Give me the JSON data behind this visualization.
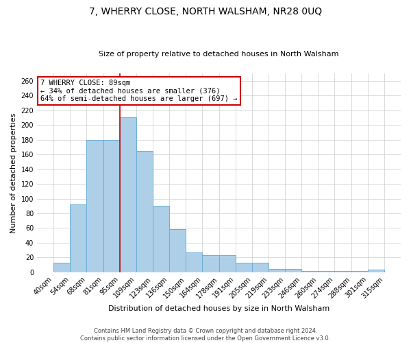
{
  "title": "7, WHERRY CLOSE, NORTH WALSHAM, NR28 0UQ",
  "subtitle": "Size of property relative to detached houses in North Walsham",
  "xlabel": "Distribution of detached houses by size in North Walsham",
  "ylabel": "Number of detached properties",
  "bin_labels": [
    "40sqm",
    "54sqm",
    "68sqm",
    "81sqm",
    "95sqm",
    "109sqm",
    "123sqm",
    "136sqm",
    "150sqm",
    "164sqm",
    "178sqm",
    "191sqm",
    "205sqm",
    "219sqm",
    "233sqm",
    "246sqm",
    "260sqm",
    "274sqm",
    "288sqm",
    "301sqm",
    "315sqm"
  ],
  "bar_heights": [
    13,
    92,
    180,
    180,
    210,
    165,
    90,
    59,
    27,
    23,
    23,
    13,
    13,
    5,
    5,
    2,
    2,
    2,
    2,
    4
  ],
  "bar_color": "#aecfe8",
  "bar_edge_color": "#6aaed6",
  "annotation_line1": "7 WHERRY CLOSE: 89sqm",
  "annotation_line2": "← 34% of detached houses are smaller (376)",
  "annotation_line3": "64% of semi-detached houses are larger (697) →",
  "annotation_box_edge": "#cc0000",
  "annotation_box_bg": "#ffffff",
  "vline_color": "#cc0000",
  "ylim": [
    0,
    270
  ],
  "yticks": [
    0,
    20,
    40,
    60,
    80,
    100,
    120,
    140,
    160,
    180,
    200,
    220,
    240,
    260
  ],
  "footer_line1": "Contains HM Land Registry data © Crown copyright and database right 2024.",
  "footer_line2": "Contains public sector information licensed under the Open Government Licence v3.0.",
  "bg_color": "#ffffff",
  "grid_color": "#cccccc",
  "title_fontsize": 10,
  "subtitle_fontsize": 8,
  "xlabel_fontsize": 8,
  "ylabel_fontsize": 8,
  "tick_fontsize": 7,
  "annotation_fontsize": 7.5,
  "footer_fontsize": 6
}
